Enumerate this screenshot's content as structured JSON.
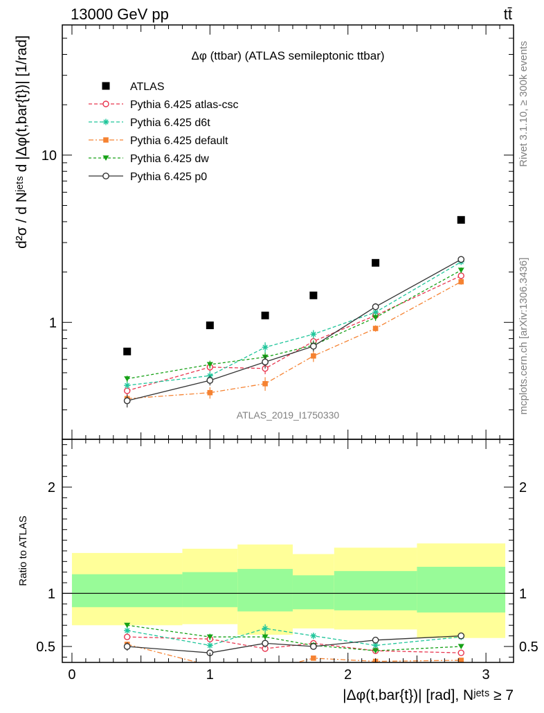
{
  "header": {
    "left": "13000 GeV pp",
    "right": "tt̄"
  },
  "side_labels": {
    "rivet": "Rivet 3.1.10, ≥ 300k events",
    "mcplots": "mcplots.cern.ch [arXiv:1306.3436]"
  },
  "analysis_id": "ATLAS_2019_I1750330",
  "colors": {
    "ATLAS": "#000000",
    "atlas-csc": "#e8344e",
    "d6t": "#1ec59a",
    "default": "#f58231",
    "dw": "#16a116",
    "p0": "#333333",
    "band_inner": "#98fb98",
    "band_outer": "#ffff99"
  },
  "chart_data": [
    {
      "type": "scatter",
      "title": "Δφ (ttbar) (ATLAS semileptonic ttbar)",
      "ylabel": "d²σ / d Nʲᵉᵗˢ d |Δφ(t,bar{t})| [1/rad]",
      "yscale": "log",
      "xlim": [
        -0.07,
        3.2
      ],
      "ylim": [
        0.2,
        60
      ],
      "yticks_labeled": [
        1,
        10
      ],
      "legend_position": "top-left",
      "bin_edges": [
        0,
        0.8,
        1.2,
        1.6,
        1.9,
        2.5,
        3.14
      ],
      "x": [
        0.4,
        1.0,
        1.4,
        1.75,
        2.2,
        2.82
      ],
      "series": [
        {
          "name": "ATLAS",
          "key": "ATLAS",
          "values": [
            0.67,
            0.96,
            1.1,
            1.45,
            2.27,
            4.1
          ]
        },
        {
          "name": "Pythia 6.425 atlas-csc",
          "key": "atlas-csc",
          "values": [
            0.39,
            0.54,
            0.53,
            0.77,
            1.1,
            1.9
          ],
          "errors": [
            0.02,
            0.03,
            0.04,
            0.05,
            0.05,
            0.08
          ]
        },
        {
          "name": "Pythia 6.425 d6t",
          "key": "d6t",
          "values": [
            0.42,
            0.48,
            0.71,
            0.85,
            1.15,
            2.3
          ],
          "errors": [
            0.02,
            0.03,
            0.05,
            0.05,
            0.05,
            0.08
          ]
        },
        {
          "name": "Pythia 6.425 default",
          "key": "default",
          "values": [
            0.35,
            0.38,
            0.43,
            0.63,
            0.92,
            1.75
          ],
          "errors": [
            0.02,
            0.03,
            0.04,
            0.05,
            0.04,
            0.07
          ]
        },
        {
          "name": "Pythia 6.425 dw",
          "key": "dw",
          "values": [
            0.46,
            0.56,
            0.62,
            0.73,
            1.07,
            2.05
          ],
          "errors": [
            0.02,
            0.03,
            0.04,
            0.05,
            0.05,
            0.08
          ]
        },
        {
          "name": "Pythia 6.425 p0",
          "key": "p0",
          "values": [
            0.34,
            0.45,
            0.58,
            0.72,
            1.24,
            2.38
          ],
          "errors": [
            0.03,
            0.03,
            0.05,
            0.05,
            0.06,
            0.08
          ]
        }
      ]
    },
    {
      "type": "scatter",
      "ylabel": "Ratio to ATLAS",
      "xlabel": "|Δφ(t,bar{t})| [rad], Nʲᵉᵗˢ ≥ 7",
      "xlim": [
        -0.07,
        3.2
      ],
      "ylim": [
        0.35,
        2.45
      ],
      "xticks": [
        0,
        1,
        2,
        3
      ],
      "yticks_labeled": [
        0.5,
        1,
        2
      ],
      "reference_line": 1,
      "bin_edges": [
        0,
        0.8,
        1.2,
        1.6,
        1.9,
        2.5,
        3.14
      ],
      "band_inner": [
        [
          0.87,
          1.18
        ],
        [
          0.87,
          1.2
        ],
        [
          0.83,
          1.23
        ],
        [
          0.85,
          1.17
        ],
        [
          0.84,
          1.21
        ],
        [
          0.82,
          1.25
        ]
      ],
      "band_outer": [
        [
          0.7,
          1.38
        ],
        [
          0.71,
          1.42
        ],
        [
          0.61,
          1.46
        ],
        [
          0.67,
          1.37
        ],
        [
          0.66,
          1.43
        ],
        [
          0.58,
          1.47
        ]
      ],
      "x": [
        0.4,
        1.0,
        1.4,
        1.75,
        2.2,
        2.82
      ],
      "series": [
        {
          "name": "Pythia 6.425 atlas-csc",
          "key": "atlas-csc",
          "values": [
            0.59,
            0.57,
            0.48,
            0.53,
            0.46,
            0.44
          ],
          "errors": [
            0.02,
            0.03,
            0.03,
            0.03,
            0.02,
            0.02
          ]
        },
        {
          "name": "Pythia 6.425 d6t",
          "key": "d6t",
          "values": [
            0.65,
            0.51,
            0.67,
            0.6,
            0.51,
            0.59
          ],
          "errors": [
            0.02,
            0.03,
            0.04,
            0.03,
            0.02,
            0.02
          ]
        },
        {
          "name": "Pythia 6.425 default",
          "key": "default",
          "values": [
            0.52,
            0.32,
            0.27,
            0.39,
            0.36,
            0.37
          ],
          "errors": [
            0.02,
            0.03,
            0.03,
            0.02,
            0.02,
            0.02
          ]
        },
        {
          "name": "Pythia 6.425 dw",
          "key": "dw",
          "values": [
            0.7,
            0.59,
            0.59,
            0.51,
            0.46,
            0.5
          ],
          "errors": [
            0.02,
            0.03,
            0.04,
            0.03,
            0.02,
            0.02
          ]
        },
        {
          "name": "Pythia 6.425 p0",
          "key": "p0",
          "values": [
            0.5,
            0.44,
            0.53,
            0.5,
            0.56,
            0.6
          ],
          "errors": [
            0.04,
            0.03,
            0.04,
            0.03,
            0.03,
            0.02
          ]
        }
      ]
    }
  ]
}
